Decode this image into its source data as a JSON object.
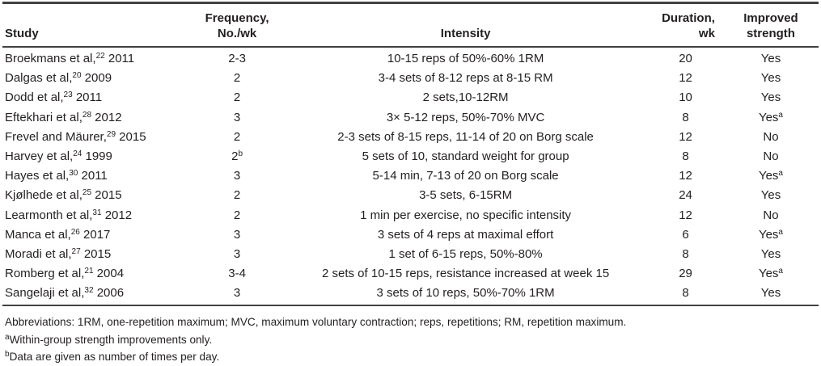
{
  "colors": {
    "text": "#231f20",
    "rule": "#414143"
  },
  "table": {
    "columns": {
      "study": "Study",
      "frequency_line1": "Frequency,",
      "frequency_line2": "No./wk",
      "intensity": "Intensity",
      "duration_line1": "Duration,",
      "duration_line2": "wk",
      "improved_line1": "Improved",
      "improved_line2": "strength"
    },
    "rows": [
      {
        "study": "Broekmans et al,",
        "ref": "22",
        "year": " 2011",
        "freq": "2-3",
        "freq_sup": "",
        "intensity": "10-15 reps of 50%-60% 1RM",
        "dur": "20",
        "imp": "Yes",
        "imp_sup": ""
      },
      {
        "study": "Dalgas et al,",
        "ref": "20",
        "year": " 2009",
        "freq": "2",
        "freq_sup": "",
        "intensity": "3-4 sets of 8-12 reps at 8-15 RM",
        "dur": "12",
        "imp": "Yes",
        "imp_sup": ""
      },
      {
        "study": "Dodd et al,",
        "ref": "23",
        "year": " 2011",
        "freq": "2",
        "freq_sup": "",
        "intensity": "2 sets,10-12RM",
        "dur": "10",
        "imp": "Yes",
        "imp_sup": ""
      },
      {
        "study": "Eftekhari et al,",
        "ref": "28",
        "year": " 2012",
        "freq": "3",
        "freq_sup": "",
        "intensity": "3× 5-12 reps, 50%-70% MVC",
        "dur": "8",
        "imp": "Yes",
        "imp_sup": "a"
      },
      {
        "study": "Frevel and Mäurer,",
        "ref": "29",
        "year": " 2015",
        "freq": "2",
        "freq_sup": "",
        "intensity": "2-3 sets of 8-15 reps, 11-14 of 20 on Borg scale",
        "dur": "12",
        "imp": "No",
        "imp_sup": ""
      },
      {
        "study": "Harvey et al,",
        "ref": "24",
        "year": " 1999",
        "freq": "2",
        "freq_sup": "b",
        "intensity": "5 sets of 10, standard weight for group",
        "dur": "8",
        "imp": "No",
        "imp_sup": ""
      },
      {
        "study": "Hayes et al,",
        "ref": "30",
        "year": " 2011",
        "freq": "3",
        "freq_sup": "",
        "intensity": "5-14 min, 7-13 of 20 on Borg scale",
        "dur": "12",
        "imp": "Yes",
        "imp_sup": "a"
      },
      {
        "study": "Kjølhede et al,",
        "ref": "25",
        "year": " 2015",
        "freq": "2",
        "freq_sup": "",
        "intensity": "3-5 sets, 6-15RM",
        "dur": "24",
        "imp": "Yes",
        "imp_sup": ""
      },
      {
        "study": "Learmonth et al,",
        "ref": "31",
        "year": " 2012",
        "freq": "2",
        "freq_sup": "",
        "intensity": "1 min per exercise, no specific intensity",
        "dur": "12",
        "imp": "No",
        "imp_sup": ""
      },
      {
        "study": "Manca et al,",
        "ref": "26",
        "year": " 2017",
        "freq": "3",
        "freq_sup": "",
        "intensity": "3 sets of 4 reps at maximal effort",
        "dur": "6",
        "imp": "Yes",
        "imp_sup": "a"
      },
      {
        "study": "Moradi et al,",
        "ref": "27",
        "year": " 2015",
        "freq": "3",
        "freq_sup": "",
        "intensity": "1 set of 6-15 reps, 50%-80%",
        "dur": "8",
        "imp": "Yes",
        "imp_sup": ""
      },
      {
        "study": "Romberg et al,",
        "ref": "21",
        "year": " 2004",
        "freq": "3-4",
        "freq_sup": "",
        "intensity": "2 sets of 10-15 reps, resistance increased at week 15",
        "dur": "29",
        "imp": "Yes",
        "imp_sup": "a"
      },
      {
        "study": "Sangelaji et al,",
        "ref": "32",
        "year": " 2006",
        "freq": "3",
        "freq_sup": "",
        "intensity": "3 sets of 10 reps, 50%-70% 1RM",
        "dur": "8",
        "imp": "Yes",
        "imp_sup": ""
      }
    ]
  },
  "footnotes": {
    "abbreviations": "Abbreviations: 1RM, one-repetition maximum; MVC, maximum voluntary contraction; reps, repetitions; RM, repetition maximum.",
    "a_marker": "a",
    "a_text": "Within-group strength improvements only.",
    "b_marker": "b",
    "b_text": "Data are given as number of times per day."
  }
}
